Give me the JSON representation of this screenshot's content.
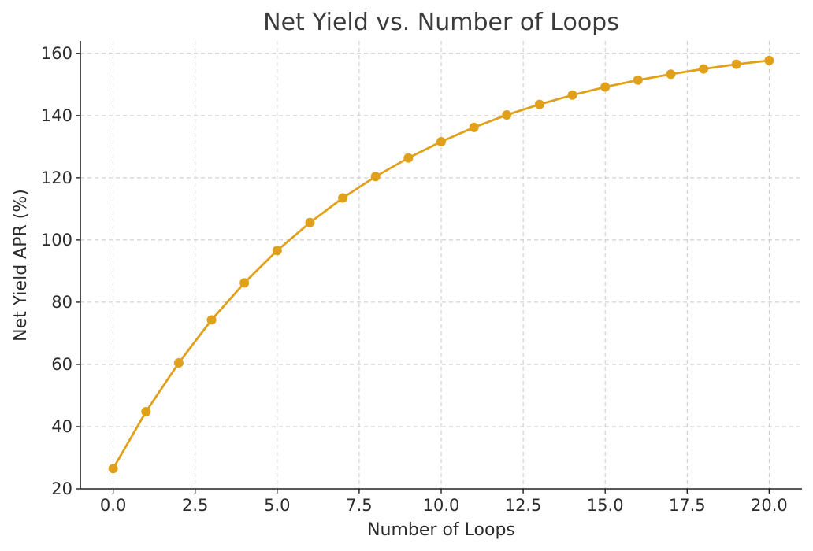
{
  "chart_data": {
    "type": "line",
    "title": "Net Yield vs. Number of Loops",
    "xlabel": "Number of Loops",
    "ylabel": "Net Yield APR (%)",
    "xlim": [
      -1,
      21
    ],
    "ylim": [
      20,
      164
    ],
    "xticks": [
      0,
      2.5,
      5,
      7.5,
      10,
      12.5,
      15,
      17.5,
      20
    ],
    "xtick_labels": [
      "0.0",
      "2.5",
      "5.0",
      "7.5",
      "10.0",
      "12.5",
      "15.0",
      "17.5",
      "20.0"
    ],
    "yticks": [
      20,
      40,
      60,
      80,
      100,
      120,
      140,
      160
    ],
    "ytick_labels": [
      "20",
      "40",
      "60",
      "80",
      "100",
      "120",
      "140",
      "160"
    ],
    "grid": true,
    "color": "#e0a019",
    "series": [
      {
        "x": [
          0,
          1,
          2,
          3,
          4,
          5,
          6,
          7,
          8,
          9,
          10,
          11,
          12,
          13,
          14,
          15,
          16,
          17,
          18,
          19,
          20
        ],
        "y": [
          26.5,
          44.8,
          60.5,
          74.3,
          86.2,
          96.6,
          105.6,
          113.5,
          120.4,
          126.4,
          131.6,
          136.2,
          140.2,
          143.6,
          146.6,
          149.2,
          151.4,
          153.3,
          155.0,
          156.5,
          157.7
        ]
      }
    ]
  }
}
